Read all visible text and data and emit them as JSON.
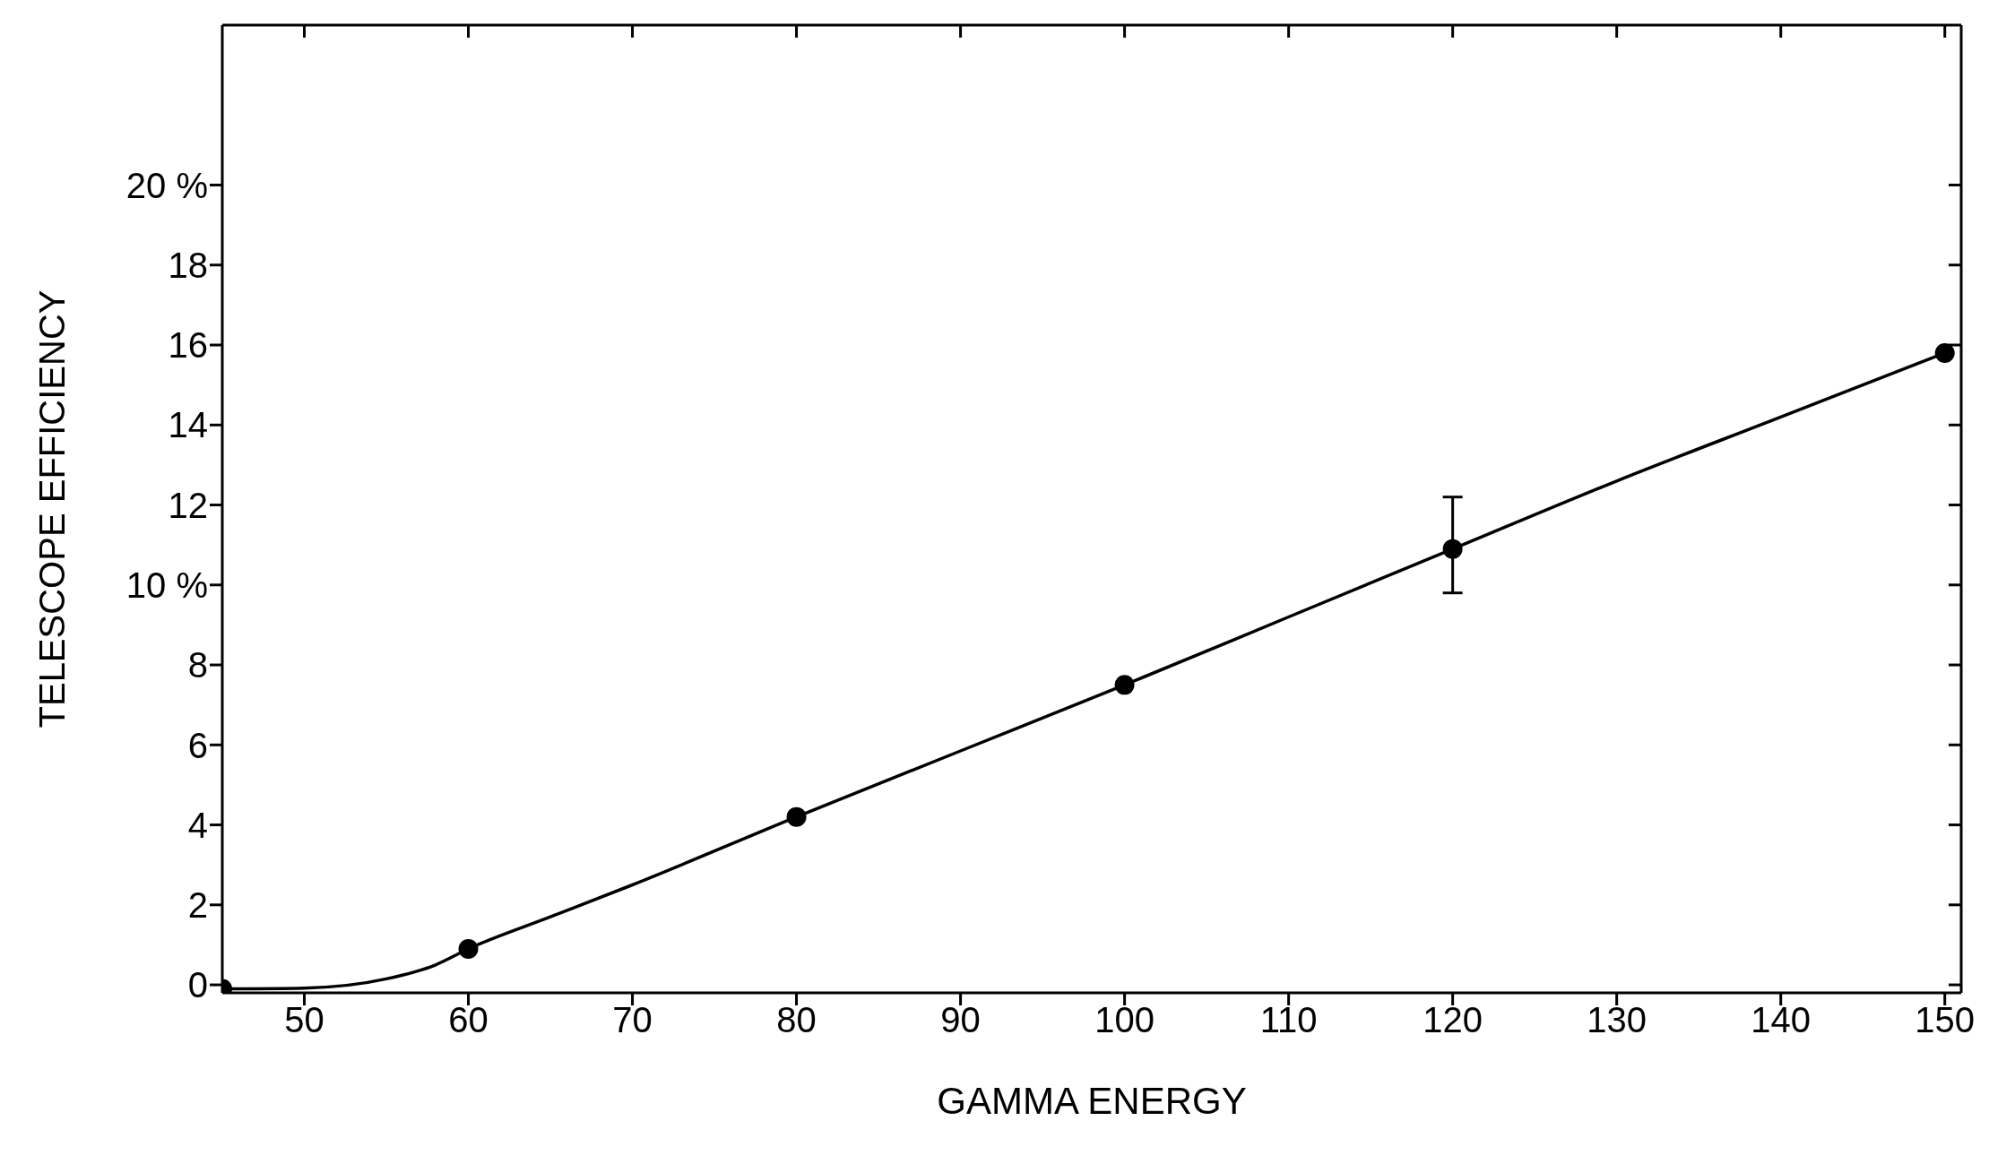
{
  "chart_data": {
    "type": "line",
    "xlabel": "GAMMA ENERGY",
    "ylabel": "TELESCOPE EFFICIENCY",
    "xlim": [
      45,
      151
    ],
    "ylim": [
      -0.2,
      24
    ],
    "xticks": [
      50,
      60,
      70,
      80,
      90,
      100,
      110,
      120,
      130,
      140,
      150
    ],
    "yticks": [
      0,
      2,
      4,
      6,
      8,
      {
        "value": 10,
        "label": "10 %"
      },
      12,
      14,
      16,
      18,
      {
        "value": 20,
        "label": "20 %"
      }
    ],
    "grid": false,
    "legend": false,
    "series": [
      {
        "type": "line",
        "color": "#000000",
        "marker": "none",
        "x": [
          45,
          50,
          55,
          58,
          60,
          65,
          70,
          80,
          90,
          100,
          110,
          120,
          130,
          140,
          150
        ],
        "values": [
          -0.1,
          -0.08,
          0.15,
          0.5,
          0.9,
          1.7,
          2.5,
          4.2,
          5.85,
          7.5,
          9.2,
          10.9,
          12.6,
          14.2,
          15.8
        ]
      },
      {
        "type": "scatter",
        "color": "#000000",
        "marker": "circle",
        "x": [
          45,
          60,
          80,
          100,
          120,
          150
        ],
        "values": [
          -0.1,
          0.9,
          4.2,
          7.5,
          10.9,
          15.8
        ],
        "errors": [
          null,
          null,
          null,
          null,
          [
            9.8,
            12.2
          ],
          null
        ]
      }
    ]
  }
}
